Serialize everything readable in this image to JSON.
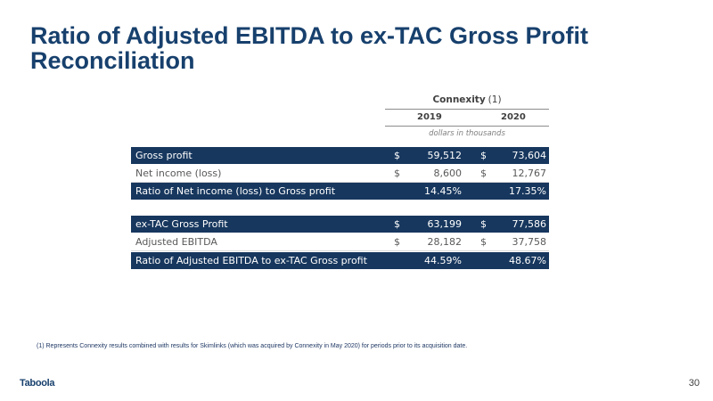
{
  "slide": {
    "title_line1": "Ratio of Adjusted EBITDA to ex-TAC Gross Profit",
    "title_line2": "Reconciliation",
    "footnote": "(1) Represents Connexity results combined with results for Skimlinks (which was acquired by Connexity in May 2020) for periods prior to its acquisition date.",
    "logo_text": "Taboola",
    "page_number": "30"
  },
  "table": {
    "company": "Connexity",
    "company_note": "(1)",
    "years": [
      "2019",
      "2020"
    ],
    "units": "dollars in thousands",
    "rows": [
      {
        "label": "Gross profit",
        "d1": "$",
        "v1": "59,512",
        "d2": "$",
        "v2": "73,604"
      },
      {
        "label": "Net income (loss)",
        "d1": "$",
        "v1": "8,600",
        "d2": "$",
        "v2": "12,767"
      },
      {
        "label": "Ratio of Net income (loss) to Gross profit",
        "p1": "14.45%",
        "p2": "17.35%"
      },
      {
        "label": "ex-TAC Gross Profit",
        "d1": "$",
        "v1": "63,199",
        "d2": "$",
        "v2": "77,586"
      },
      {
        "label": "Adjusted EBITDA",
        "d1": "$",
        "v1": "28,182",
        "d2": "$",
        "v2": "37,758"
      },
      {
        "label": "Ratio of Adjusted EBITDA to ex-TAC Gross profit",
        "p1": "44.59%",
        "p2": "48.67%"
      }
    ]
  },
  "colors": {
    "title": "#17406d",
    "dark_row": "#17375e",
    "light_row_text": "#595959"
  }
}
